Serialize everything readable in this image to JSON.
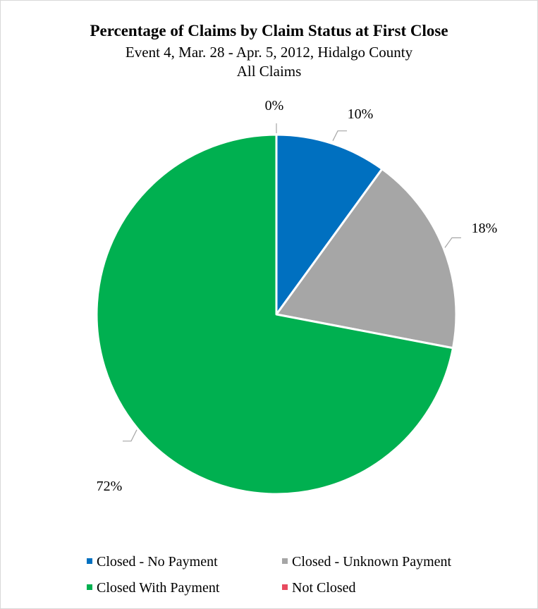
{
  "chart_data": {
    "type": "pie",
    "title": "Percentage of Claims by Claim Status at First Close",
    "subtitle": "Event 4, Mar. 28 - Apr. 5, 2012, Hidalgo County",
    "subtitle2": "All Claims",
    "legend_position": "bottom",
    "slices": [
      {
        "name": "Closed - No Payment",
        "value": 10,
        "label": "10%",
        "color": "#0070c0"
      },
      {
        "name": "Closed - Unknown Payment",
        "value": 18,
        "label": "18%",
        "color": "#a6a6a6"
      },
      {
        "name": "Closed With Payment",
        "value": 72,
        "label": "72%",
        "color": "#00b050"
      },
      {
        "name": "Not Closed",
        "value": 0,
        "label": "0%",
        "color": "#e84a5f"
      }
    ]
  }
}
